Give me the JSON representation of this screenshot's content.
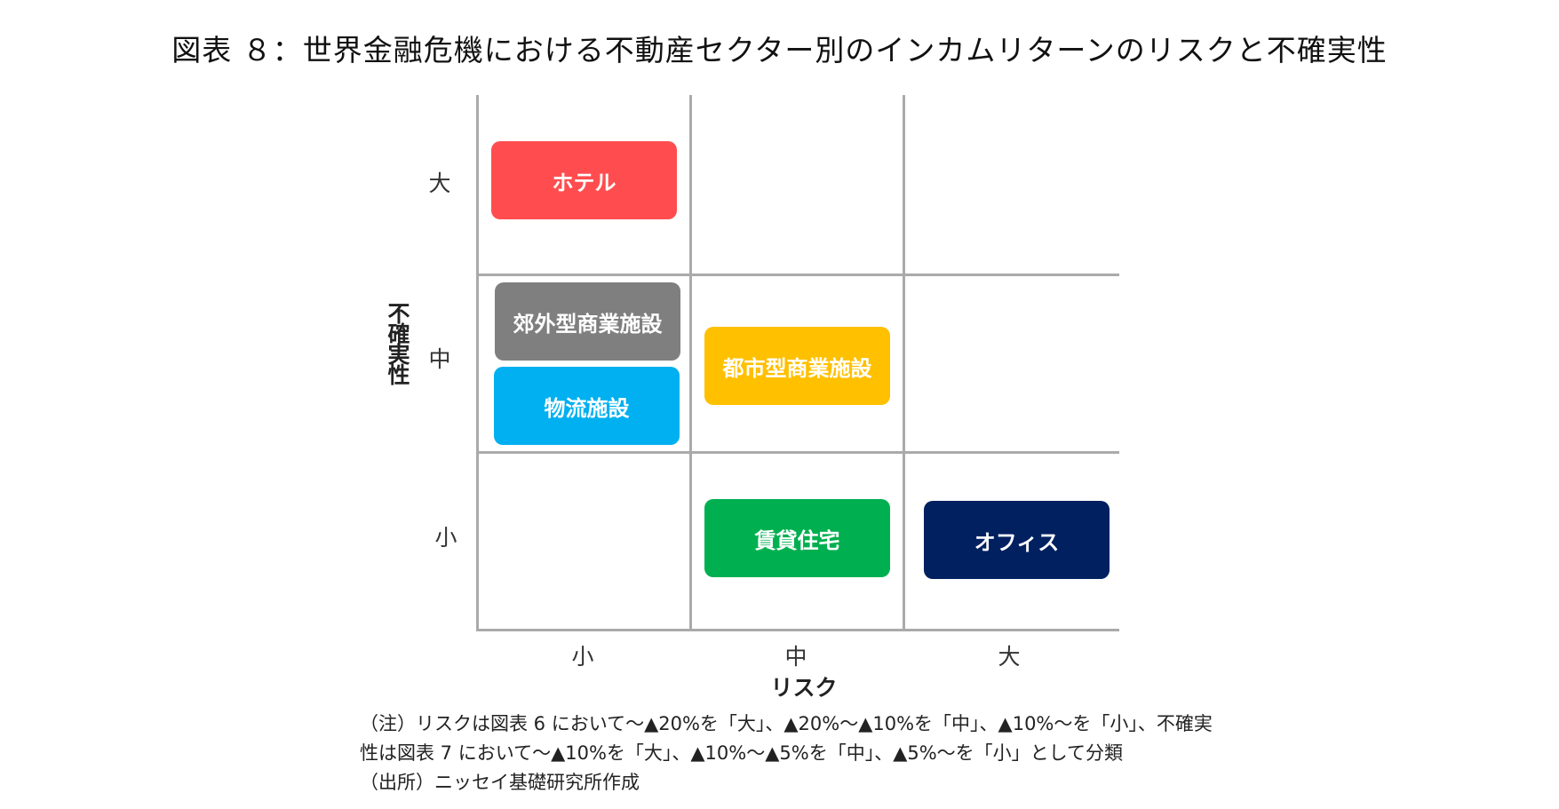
{
  "title": "図表 ８：世界金融危機における不動産セクター別のインカムリターンのリスクと不確実性",
  "axes": {
    "y_label": "不確実性",
    "x_label": "リスク",
    "y_ticks": [
      "大",
      "中",
      "小"
    ],
    "x_ticks": [
      "小",
      "中",
      "大"
    ]
  },
  "sectors": [
    {
      "label": "ホテル",
      "risk": "小",
      "uncertainty": "大",
      "color": "#FF4D4F"
    },
    {
      "label": "郊外型商業施設",
      "risk": "小",
      "uncertainty": "中",
      "color": "#7F7F7F"
    },
    {
      "label": "物流施設",
      "risk": "小",
      "uncertainty": "中",
      "color": "#00B0F0"
    },
    {
      "label": "都市型商業施設",
      "risk": "中",
      "uncertainty": "中",
      "color": "#FFC000"
    },
    {
      "label": "賃貸住宅",
      "risk": "中",
      "uncertainty": "小",
      "color": "#00B050"
    },
    {
      "label": "オフィス",
      "risk": "大",
      "uncertainty": "小",
      "color": "#002060"
    }
  ],
  "notes": [
    "（注）リスクは図表 6 において～▲20%を「大」、▲20%～▲10%を「中」、▲10%～を「小」、不確実",
    "性は図表 7 において～▲10%を「大」、▲10%～▲5%を「中」、▲5%～を「小」として分類",
    "（出所）ニッセイ基礎研究所作成"
  ]
}
